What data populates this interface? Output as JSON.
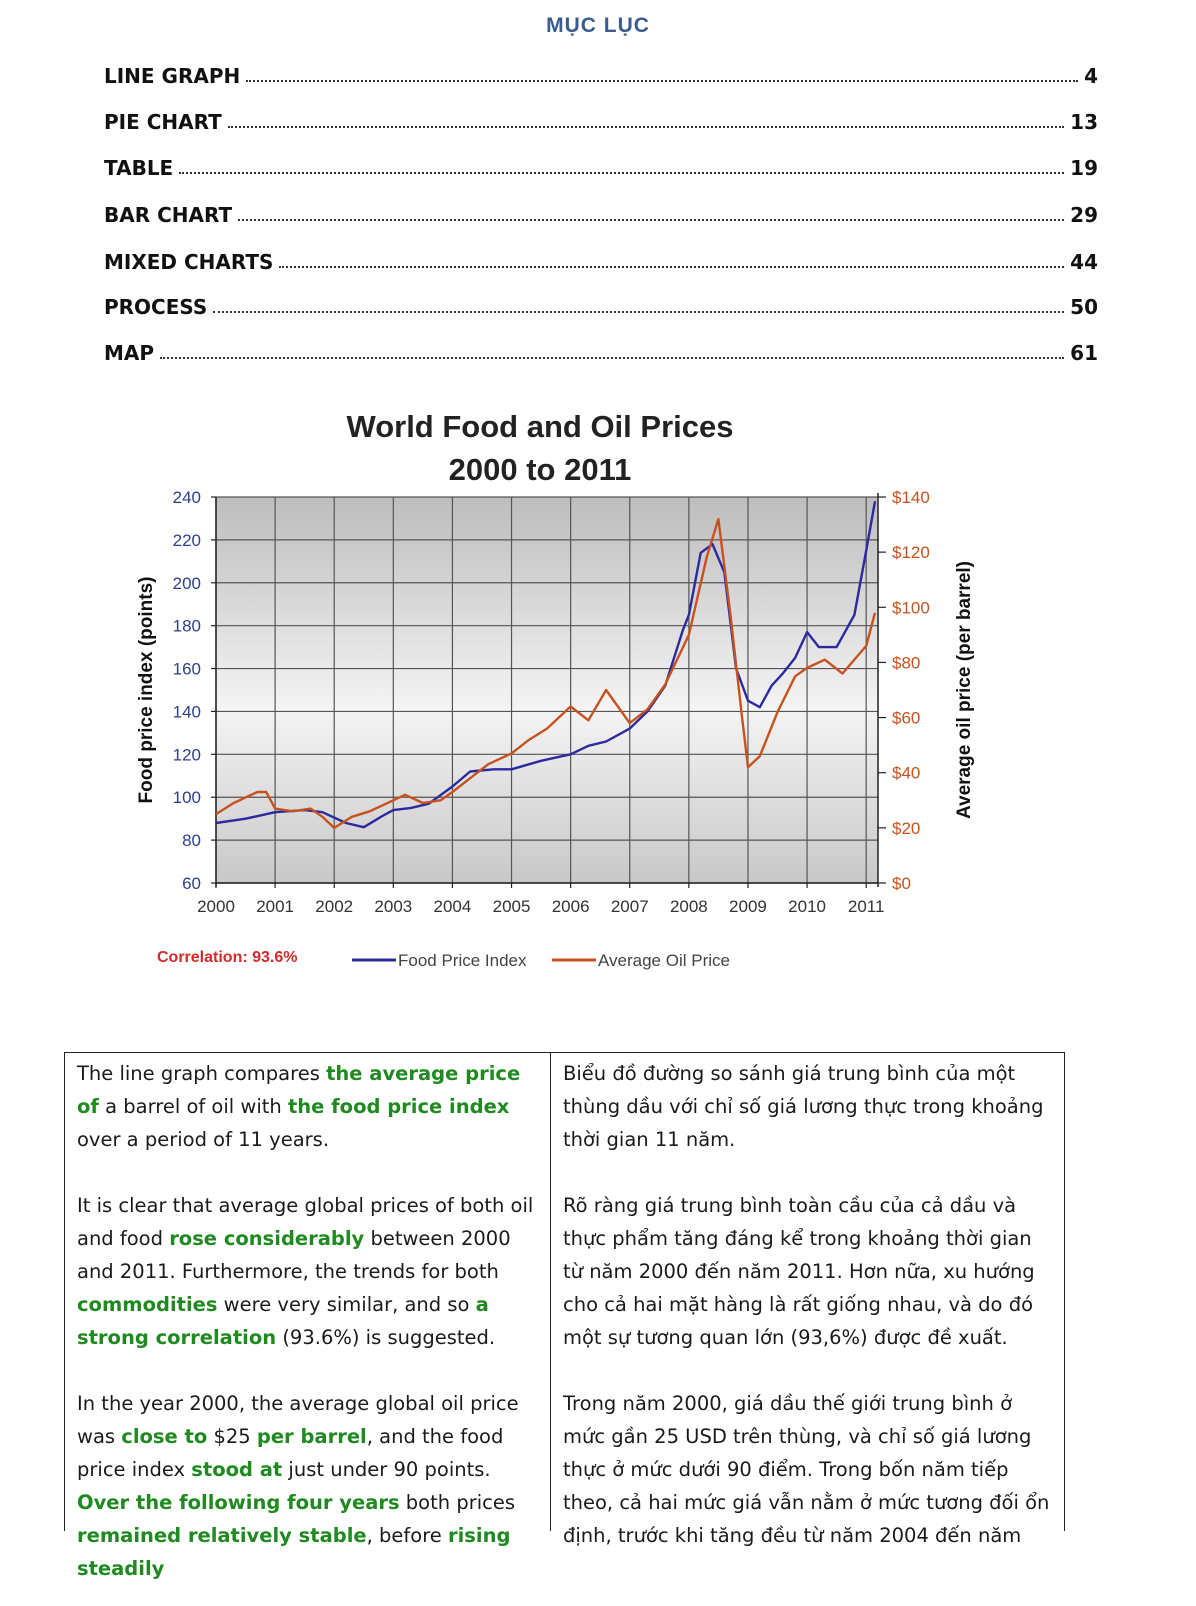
{
  "toc": {
    "title": "MỤC LỤC",
    "items": [
      {
        "label": "LINE GRAPH",
        "page": "4"
      },
      {
        "label": "PIE CHART",
        "page": "13"
      },
      {
        "label": "TABLE",
        "page": "19"
      },
      {
        "label": "BAR CHART",
        "page": "29"
      },
      {
        "label": "MIXED CHARTS",
        "page": "44"
      },
      {
        "label": "PROCESS",
        "page": "50"
      },
      {
        "label": "MAP",
        "page": "61"
      }
    ]
  },
  "chart_data": {
    "type": "line",
    "title": "World Food and Oil Prices",
    "subtitle": "2000 to 2011",
    "ylabel": "Food price index (points)",
    "y2label": "Average oil price (per barrel)",
    "x_ticks": [
      "2000",
      "2001",
      "2002",
      "2003",
      "2004",
      "2005",
      "2006",
      "2007",
      "2008",
      "2009",
      "2010",
      "2011"
    ],
    "y_ticks": [
      "60",
      "80",
      "100",
      "120",
      "140",
      "160",
      "180",
      "200",
      "220",
      "240"
    ],
    "y2_ticks": [
      "$0",
      "$20",
      "$40",
      "$60",
      "$80",
      "$100",
      "$120",
      "$140"
    ],
    "ylim": [
      60,
      240
    ],
    "y2lim": [
      0,
      140
    ],
    "xlim": [
      2000,
      2011.2
    ],
    "correlation_label": "Correlation: 93.6%",
    "legend_position": "bottom",
    "grid": true,
    "series": [
      {
        "name": "Food Price Index",
        "axis": "left",
        "color": "#2b2a9e",
        "x": [
          2000,
          2000.5,
          2001,
          2001.5,
          2001.8,
          2002.2,
          2002.5,
          2002.8,
          2003,
          2003.3,
          2003.6,
          2004,
          2004.3,
          2004.7,
          2005,
          2005.5,
          2006,
          2006.3,
          2006.6,
          2007,
          2007.3,
          2007.6,
          2007.9,
          2008,
          2008.2,
          2008.4,
          2008.6,
          2008.8,
          2009,
          2009.2,
          2009.4,
          2009.6,
          2009.8,
          2010,
          2010.2,
          2010.5,
          2010.8,
          2011,
          2011.15
        ],
        "y": [
          88,
          90,
          93,
          94,
          93,
          88,
          86,
          91,
          94,
          95,
          97,
          105,
          112,
          113,
          113,
          117,
          120,
          124,
          126,
          132,
          140,
          152,
          178,
          185,
          214,
          218,
          205,
          160,
          145,
          142,
          152,
          158,
          165,
          177,
          170,
          170,
          185,
          215,
          238
        ]
      },
      {
        "name": "Average Oil Price",
        "axis": "right",
        "color": "#c8521e",
        "x": [
          2000,
          2000.3,
          2000.7,
          2000.85,
          2001,
          2001.3,
          2001.6,
          2001.8,
          2002,
          2002.3,
          2002.6,
          2003,
          2003.2,
          2003.5,
          2003.8,
          2004,
          2004.3,
          2004.6,
          2005,
          2005.3,
          2005.6,
          2006,
          2006.3,
          2006.6,
          2007,
          2007.3,
          2007.6,
          2008,
          2008.3,
          2008.5,
          2008.7,
          2008.9,
          2009,
          2009.2,
          2009.5,
          2009.8,
          2010,
          2010.3,
          2010.6,
          2011,
          2011.15
        ],
        "y": [
          25,
          29,
          33,
          33,
          27,
          26,
          27,
          24,
          20,
          24,
          26,
          30,
          32,
          29,
          30,
          33,
          38,
          43,
          47,
          52,
          56,
          64,
          59,
          70,
          58,
          63,
          72,
          90,
          118,
          132,
          98,
          60,
          42,
          46,
          62,
          75,
          78,
          81,
          76,
          86,
          98
        ]
      }
    ]
  },
  "text_table": {
    "left": [
      [
        {
          "t": "The line graph compares "
        },
        {
          "t": "the average price of",
          "hl": true
        },
        {
          "t": " a barrel of oil with "
        },
        {
          "t": "the food price index",
          "hl": true
        },
        {
          "t": " over a period of 11 years."
        }
      ],
      [
        {
          "t": "It is clear that average global prices of both oil and food "
        },
        {
          "t": "rose considerably",
          "hl": true
        },
        {
          "t": " between 2000 and 2011. Furthermore, the trends for both "
        },
        {
          "t": "commodities",
          "hl": true
        },
        {
          "t": " were very similar, and so "
        },
        {
          "t": "a strong correlation",
          "hl": true
        },
        {
          "t": " (93.6%) is suggested."
        }
      ],
      [
        {
          "t": "In the year 2000, the average global oil price was "
        },
        {
          "t": "close to",
          "hl": true
        },
        {
          "t": " $25 "
        },
        {
          "t": "per barrel",
          "hl": true
        },
        {
          "t": ", and the food price index "
        },
        {
          "t": "stood at",
          "hl": true
        },
        {
          "t": " just under 90 points. "
        },
        {
          "t": "Over the following four years",
          "hl": true
        },
        {
          "t": " both prices "
        },
        {
          "t": "remained relatively stable",
          "hl": true
        },
        {
          "t": ", before "
        },
        {
          "t": "rising steadily",
          "hl": true
        }
      ]
    ],
    "right": [
      [
        {
          "t": "Biểu đồ đường so sánh giá trung bình của một thùng dầu với chỉ số giá lương thực trong khoảng thời gian 11 năm."
        }
      ],
      [
        {
          "t": "Rõ ràng giá trung bình toàn cầu của cả dầu và thực phẩm tăng đáng kể trong khoảng thời gian từ năm 2000 đến năm 2011. Hơn nữa, xu hướng cho cả hai mặt hàng là rất giống nhau, và do đó một sự tương quan lớn (93,6%) được đề xuất."
        }
      ],
      [
        {
          "t": "Trong năm 2000, giá dầu thế giới trung bình ở mức gần 25 USD trên thùng, và chỉ số giá lương thực ở mức dưới 90 điểm. Trong bốn năm tiếp theo, cả hai mức giá vẫn nằm ở mức tương đối ổn định, trước khi tăng đều từ năm 2004 đến năm"
        }
      ]
    ]
  }
}
